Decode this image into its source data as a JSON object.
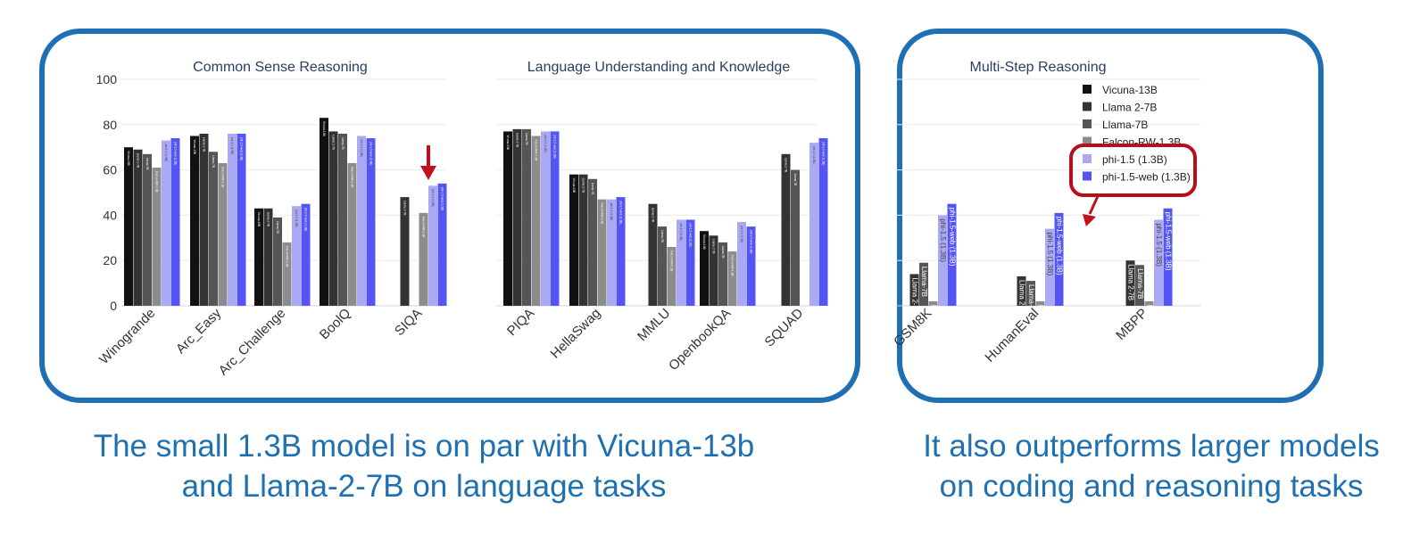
{
  "chart_data": {
    "type": "bar",
    "ylim": [
      0,
      100
    ],
    "yticks": [
      0,
      20,
      40,
      60,
      80,
      100
    ],
    "legend_position": "top-right of Multi-Step Reasoning panel",
    "series_names": [
      "Vicuna-13B",
      "Llama 2-7B",
      "Llama-7B",
      "Falcon-RW-1.3B",
      "phi-1.5 (1.3B)",
      "phi-1.5-web (1.3B)"
    ],
    "series_colors": [
      "#111111",
      "#333333",
      "#555555",
      "#8c8c8c",
      "#a9a9f5",
      "#5555f5"
    ],
    "bar_labels": [
      "Vicuna-13B",
      "Llama 2-7B",
      "Llama-7B",
      "Falcon-RW-1.3B",
      "phi-1.5 (1.3B)",
      "phi-1.5-web (1.3B)"
    ],
    "groups": [
      {
        "title": "Common Sense Reasoning",
        "categories": [
          "Winogrande",
          "Arc_Easy",
          "Arc_Challenge",
          "BoolQ",
          "SIQA"
        ],
        "values": [
          [
            70,
            69,
            67,
            61,
            73,
            74
          ],
          [
            75,
            76,
            68,
            63,
            76,
            76
          ],
          [
            43,
            43,
            39,
            28,
            44,
            45
          ],
          [
            83,
            77,
            76,
            63,
            75,
            74
          ],
          [
            null,
            48,
            null,
            41,
            53,
            54
          ]
        ]
      },
      {
        "title": "Language Understanding and Knowledge",
        "categories": [
          "PIQA",
          "HellaSwag",
          "MMLU",
          "OpenbookQA",
          "SQUAD"
        ],
        "values": [
          [
            77,
            78,
            78,
            75,
            77,
            77
          ],
          [
            58,
            58,
            56,
            47,
            47,
            48
          ],
          [
            null,
            45,
            35,
            26,
            38,
            38
          ],
          [
            33,
            31,
            28,
            24,
            37,
            35
          ],
          [
            null,
            67,
            60,
            null,
            72,
            74
          ]
        ]
      },
      {
        "title": "Multi-Step Reasoning",
        "categories": [
          "GSM8K",
          "HumanEval",
          "MBPP"
        ],
        "values": [
          [
            null,
            14,
            19,
            2,
            40,
            45
          ],
          [
            null,
            13,
            11,
            2,
            34,
            41
          ],
          [
            null,
            20,
            18,
            2,
            38,
            43
          ]
        ]
      }
    ],
    "highlight": {
      "legend_box": [
        "phi-1.5 (1.3B)",
        "phi-1.5-web (1.3B)"
      ],
      "arrow_target": "SIQA"
    }
  },
  "captions": {
    "left": [
      "The small 1.3B model is on par with Vicuna-13b",
      "and Llama-2-7B on language tasks"
    ],
    "right": [
      "It also outperforms larger models",
      "on coding and reasoning tasks"
    ]
  }
}
